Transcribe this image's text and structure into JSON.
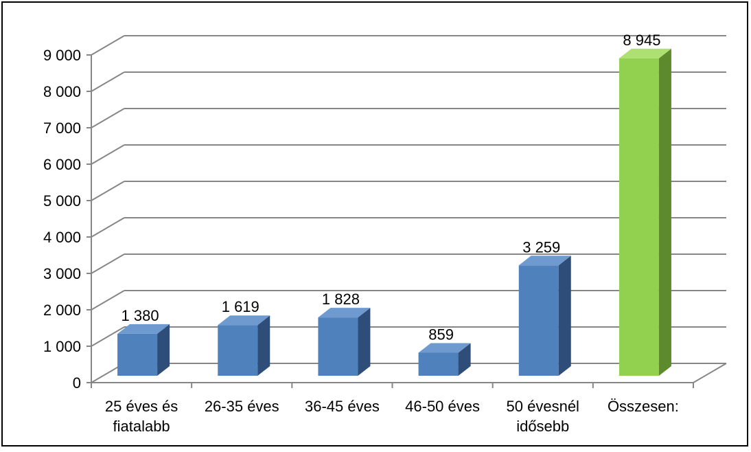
{
  "chart_data": {
    "type": "bar",
    "categories": [
      [
        "25 éves és",
        "fiatalabb"
      ],
      [
        "26-35 éves"
      ],
      [
        "36-45 éves"
      ],
      [
        "46-50 éves"
      ],
      [
        "50 évesnél",
        "idősebb"
      ],
      [
        "Összesen:"
      ]
    ],
    "values": [
      1380,
      1619,
      1828,
      859,
      3259,
      8945
    ],
    "value_labels": [
      "1 380",
      "1 619",
      "1 828",
      "859",
      "3 259",
      "8 945"
    ],
    "y_ticks": [
      {
        "value": 0,
        "label": "0"
      },
      {
        "value": 1000,
        "label": "1 000"
      },
      {
        "value": 2000,
        "label": "2 000"
      },
      {
        "value": 3000,
        "label": "3 000"
      },
      {
        "value": 4000,
        "label": "4 000"
      },
      {
        "value": 5000,
        "label": "5 000"
      },
      {
        "value": 6000,
        "label": "6 000"
      },
      {
        "value": 7000,
        "label": "7 000"
      },
      {
        "value": 8000,
        "label": "8 000"
      },
      {
        "value": 9000,
        "label": "9 000"
      }
    ],
    "ylim": [
      0,
      9000
    ],
    "grid": true,
    "three_d": true,
    "colors": {
      "bar": "#4f81bd",
      "bar_side": "#2e4d78",
      "bar_top": "#6f9ad0",
      "total_bar": "#92d050",
      "total_side": "#5e8a2e",
      "total_top": "#aedf72",
      "grid": "#868686",
      "frame": "#000000"
    }
  }
}
